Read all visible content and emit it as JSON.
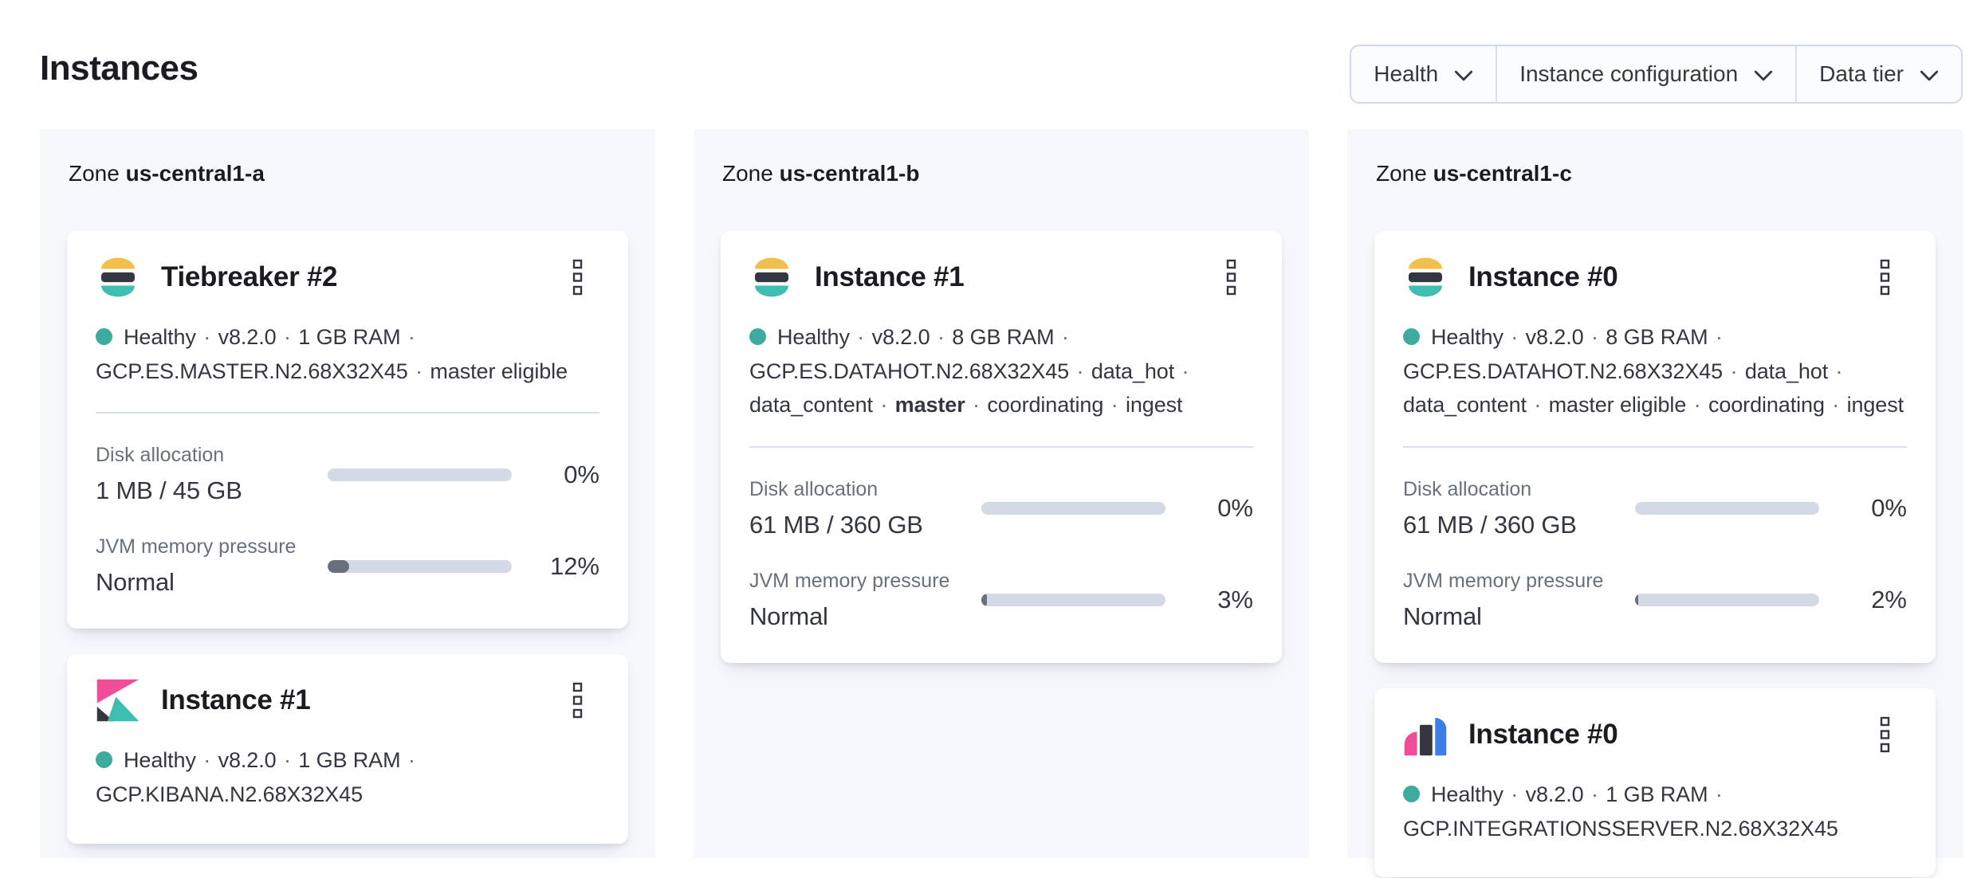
{
  "page": {
    "title": "Instances"
  },
  "filters": [
    {
      "label": "Health"
    },
    {
      "label": "Instance configuration"
    },
    {
      "label": "Data tier"
    }
  ],
  "separator": "·",
  "zone_label": "Zone",
  "zones": [
    {
      "name": "us-central1-a",
      "cards": [
        {
          "product": "elasticsearch",
          "title": "Tiebreaker #2",
          "attrs": [
            "Healthy",
            "v8.2.0",
            "1 GB RAM",
            "GCP.ES.MASTER.N2.68X32X45",
            "master eligible"
          ],
          "metrics": [
            {
              "label": "Disk allocation",
              "value": "1 MB / 45 GB",
              "percent": 0,
              "percent_label": "0%"
            },
            {
              "label": "JVM memory pressure",
              "value": "Normal",
              "percent": 12,
              "percent_label": "12%"
            }
          ]
        },
        {
          "product": "kibana",
          "title": "Instance #1",
          "attrs": [
            "Healthy",
            "v8.2.0",
            "1 GB RAM",
            "GCP.KIBANA.N2.68X32X45"
          ]
        }
      ]
    },
    {
      "name": "us-central1-b",
      "cards": [
        {
          "product": "elasticsearch",
          "title": "Instance #1",
          "attrs": [
            "Healthy",
            "v8.2.0",
            "8 GB RAM",
            "GCP.ES.DATAHOT.N2.68X32X45",
            "data_hot",
            "data_content",
            "master",
            "coordinating",
            "ingest"
          ],
          "metrics": [
            {
              "label": "Disk allocation",
              "value": "61 MB / 360 GB",
              "percent": 0,
              "percent_label": "0%"
            },
            {
              "label": "JVM memory pressure",
              "value": "Normal",
              "percent": 3,
              "percent_label": "3%"
            }
          ]
        }
      ]
    },
    {
      "name": "us-central1-c",
      "cards": [
        {
          "product": "elasticsearch",
          "title": "Instance #0",
          "attrs": [
            "Healthy",
            "v8.2.0",
            "8 GB RAM",
            "GCP.ES.DATAHOT.N2.68X32X45",
            "data_hot",
            "data_content",
            "master eligible",
            "coordinating",
            "ingest"
          ],
          "metrics": [
            {
              "label": "Disk allocation",
              "value": "61 MB / 360 GB",
              "percent": 0,
              "percent_label": "0%"
            },
            {
              "label": "JVM memory pressure",
              "value": "Normal",
              "percent": 2,
              "percent_label": "2%"
            }
          ]
        },
        {
          "product": "integrations_server",
          "title": "Instance #0",
          "attrs": [
            "Healthy",
            "v8.2.0",
            "1 GB RAM",
            "GCP.INTEGRATIONSSERVER.N2.68X32X45"
          ]
        }
      ]
    }
  ],
  "colors": {
    "health_dot": "#3dab9e",
    "progress_track": "#d3dae6",
    "progress_fill": "#69707d",
    "zone_panel_background": "#f7f8fc",
    "elastic_yellow": "#f1bf4b",
    "elastic_dark": "#343741",
    "elastic_teal": "#3ebeb0",
    "kibana_pink": "#f04e98",
    "integrations_blue": "#3c7de8"
  }
}
